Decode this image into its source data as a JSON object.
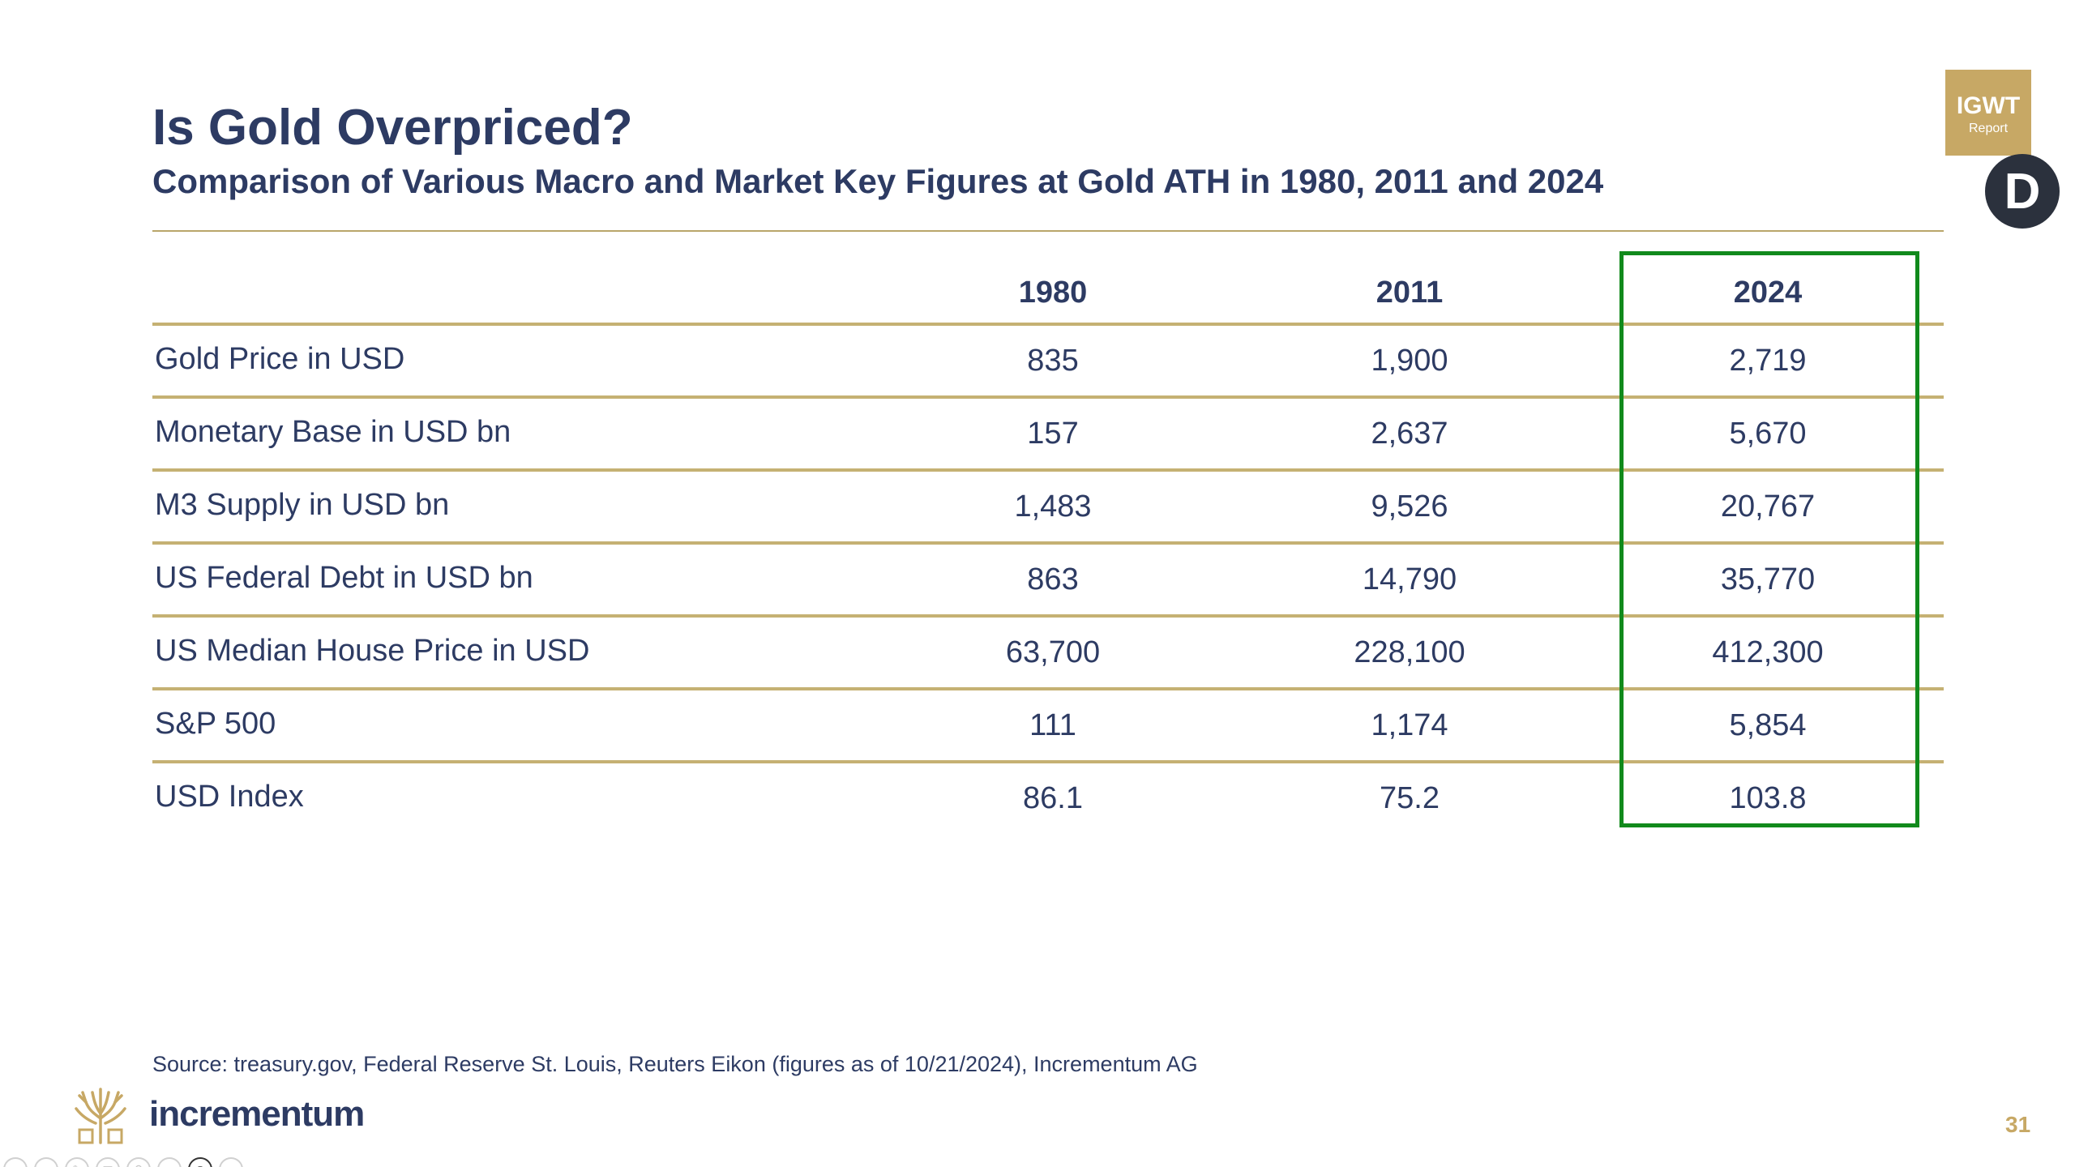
{
  "title": "Is Gold Overpriced?",
  "subtitle": "Comparison of Various Macro and Market Key Figures at Gold ATH in 1980, 2011 and 2024",
  "badge": {
    "main": "IGWT",
    "sub": "Report"
  },
  "avatar_letter": "D",
  "table": {
    "columns": [
      "1980",
      "2011",
      "2024"
    ],
    "rows": [
      {
        "label": "Gold Price in USD",
        "values": [
          "835",
          "1,900",
          "2,719"
        ]
      },
      {
        "label": "Monetary Base in USD bn",
        "values": [
          "157",
          "2,637",
          "5,670"
        ]
      },
      {
        "label": "M3 Supply in USD bn",
        "values": [
          "1,483",
          "9,526",
          "20,767"
        ]
      },
      {
        "label": "US Federal Debt in USD bn",
        "values": [
          "863",
          "14,790",
          "35,770"
        ]
      },
      {
        "label": "US Median House Price in USD",
        "values": [
          "63,700",
          "228,100",
          "412,300"
        ]
      },
      {
        "label": "S&P 500",
        "values": [
          "111",
          "1,174",
          "5,854"
        ]
      },
      {
        "label": "USD Index",
        "values": [
          "86.1",
          "75.2",
          "103.8"
        ]
      }
    ]
  },
  "source": "Source: treasury.gov, Federal Reserve St. Louis, Reuters Eikon (figures as of 10/21/2024), Incrementum AG",
  "logo_text": "incrementum",
  "page_number": "31",
  "colors": {
    "navy": "#2d3b63",
    "gold": "#c7a865",
    "highlight": "#118a1c"
  },
  "toolbar": {
    "buttons": [
      {
        "icon": "previous-slide-icon",
        "glyph": "‹"
      },
      {
        "icon": "next-slide-icon",
        "glyph": "›"
      },
      {
        "icon": "pen-icon",
        "glyph": "✎"
      },
      {
        "icon": "slides-overview-icon",
        "glyph": "▦"
      },
      {
        "icon": "zoom-icon",
        "glyph": "⚲"
      },
      {
        "icon": "subtitles-icon",
        "glyph": "▭"
      },
      {
        "icon": "camera-icon",
        "glyph": "◉"
      },
      {
        "icon": "more-options-icon",
        "glyph": "⋯"
      }
    ]
  }
}
